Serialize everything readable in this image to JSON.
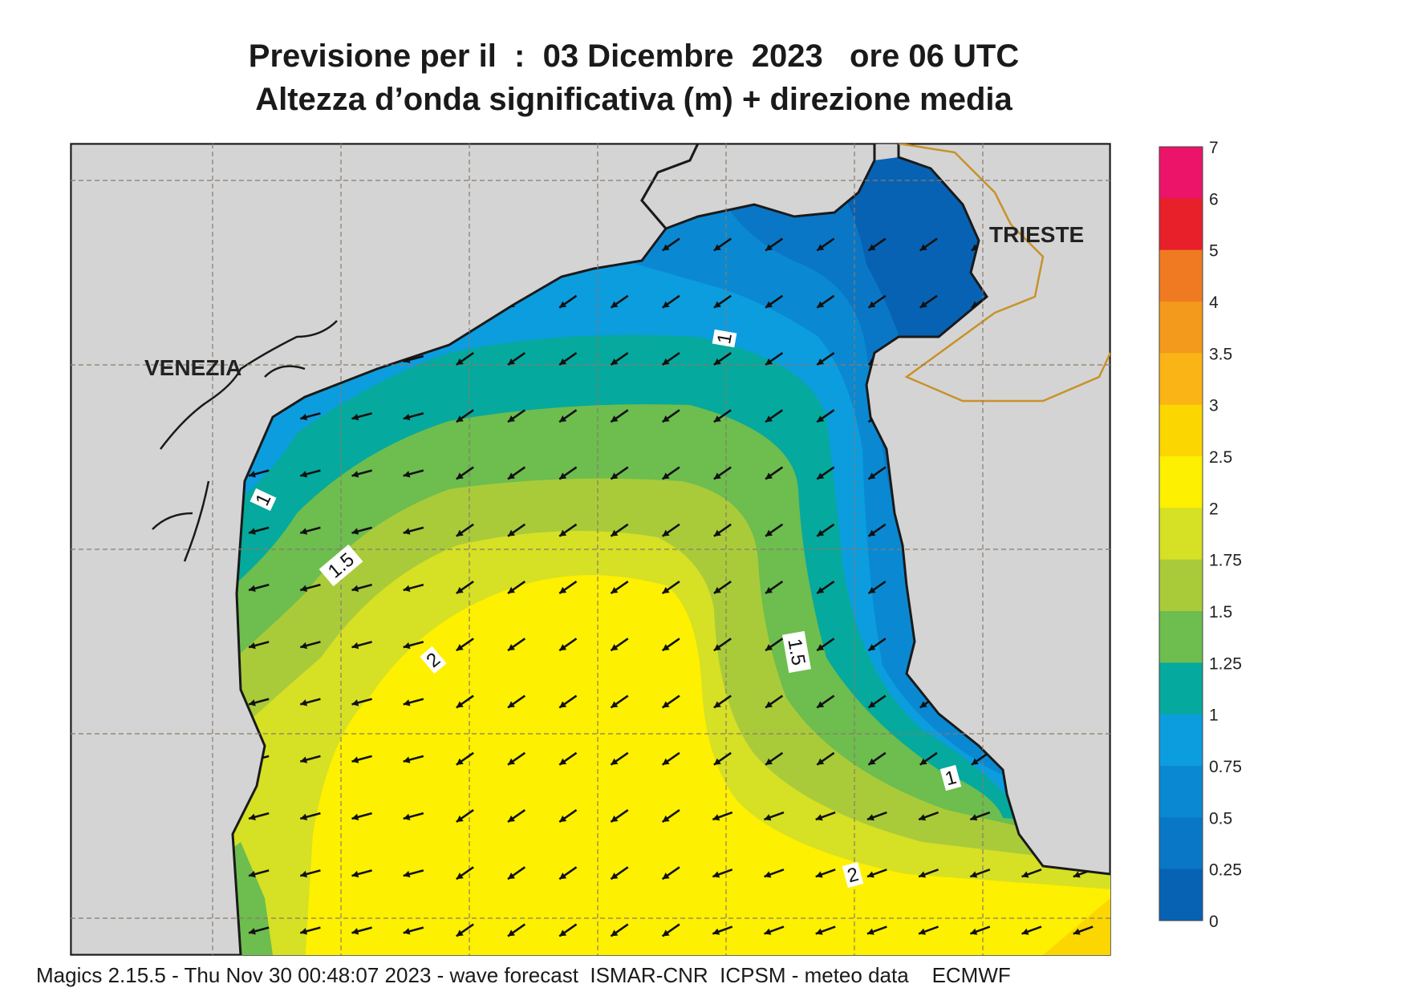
{
  "title": {
    "line1": "Previsione per il  :  03 Dicembre  2023   ore 06 UTC",
    "line2": "Altezza d’onda significativa (m) + direzione media"
  },
  "places": {
    "venezia": "VENEZIA",
    "trieste": "TRIESTE"
  },
  "contour_labels": [
    "1",
    "1",
    "1.5",
    "1.5",
    "2",
    "2",
    "1"
  ],
  "legend": {
    "ticks": [
      "7",
      "6",
      "5",
      "4",
      "3.5",
      "3",
      "2.5",
      "2",
      "1.75",
      "1.5",
      "1.25",
      "1",
      "0.75",
      "0.5",
      "0.25",
      "0"
    ],
    "colors": [
      "#ec1469",
      "#e8202a",
      "#f07a22",
      "#f39a1c",
      "#fbb416",
      "#fcd600",
      "#fdf000",
      "#d6e024",
      "#a9cb3a",
      "#6dbd4f",
      "#06a99d",
      "#0c9ddf",
      "#0a89d2",
      "#0a77c6",
      "#0762b4"
    ]
  },
  "footer": "Magics 2.15.5 - Thu Nov 30 00:48:07 2023 - wave forecast  ISMAR-CNR  ICPSM - meteo data    ECMWF",
  "colors": {
    "land": "#d4d4d4",
    "coast": "#1a1a1a",
    "border": "#c8922a",
    "grid": "#8a7a6a",
    "arrow": "#111111"
  }
}
